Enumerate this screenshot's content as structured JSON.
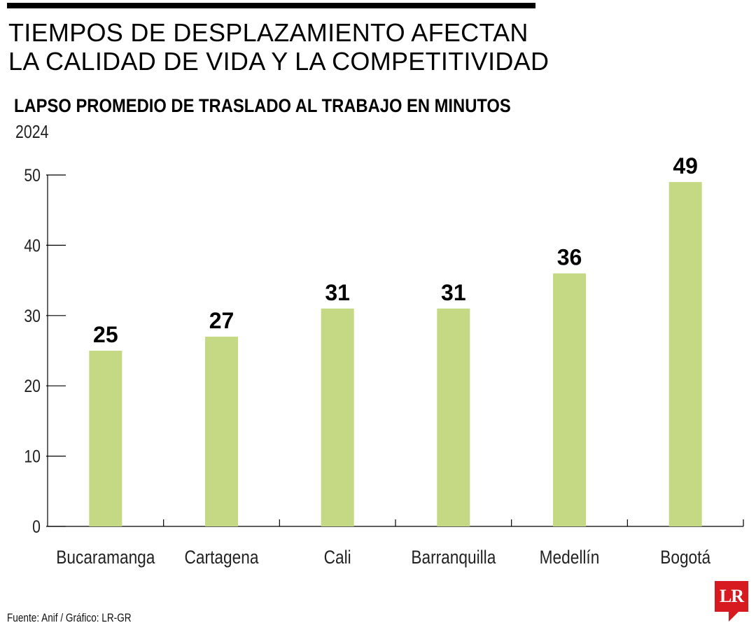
{
  "header": {
    "title_line1": "TIEMPOS DE DESPLAZAMIENTO AFECTAN",
    "title_line2": "LA CALIDAD DE VIDA Y LA COMPETITIVIDAD",
    "subtitle": "LAPSO PROMEDIO DE TRASLADO AL TRABAJO EN MINUTOS",
    "year": "2024"
  },
  "footer": {
    "source": "Fuente: Anif / Gráfico: LR-GR",
    "logo_text": "LR"
  },
  "colors": {
    "bar": "#c5d985",
    "axis": "#000000",
    "logo": "#d71920"
  },
  "chart_data": {
    "type": "bar",
    "categories": [
      "Bucaramanga",
      "Cartagena",
      "Cali",
      "Barranquilla",
      "Medellín",
      "Bogotá"
    ],
    "values": [
      25,
      27,
      31,
      31,
      36,
      49
    ],
    "title": "LAPSO PROMEDIO DE TRASLADO AL TRABAJO EN MINUTOS",
    "xlabel": "",
    "ylabel": "",
    "ylim": [
      0,
      50
    ],
    "yticks": [
      0,
      10,
      20,
      30,
      40,
      50
    ],
    "grid": false,
    "data_labels": true
  }
}
